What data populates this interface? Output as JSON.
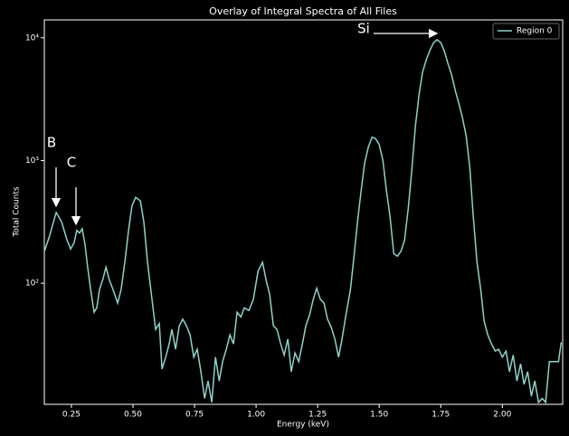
{
  "chart_data": {
    "type": "line",
    "title": "Overlay of Integral Spectra of All Files",
    "xlabel": "Energy (keV)",
    "ylabel": "Total Counts",
    "x": [
      0.14,
      0.162,
      0.188,
      0.21,
      0.232,
      0.247,
      0.261,
      0.272,
      0.283,
      0.294,
      0.305,
      0.316,
      0.328,
      0.342,
      0.353,
      0.364,
      0.379,
      0.39,
      0.405,
      0.419,
      0.438,
      0.452,
      0.467,
      0.482,
      0.496,
      0.511,
      0.53,
      0.544,
      0.559,
      0.577,
      0.592,
      0.607,
      0.618,
      0.633,
      0.647,
      0.658,
      0.673,
      0.688,
      0.702,
      0.717,
      0.732,
      0.747,
      0.761,
      0.776,
      0.791,
      0.805,
      0.82,
      0.835,
      0.85,
      0.864,
      0.879,
      0.894,
      0.908,
      0.923,
      0.938,
      0.952,
      0.971,
      0.989,
      1.008,
      1.026,
      1.041,
      1.055,
      1.07,
      1.085,
      1.1,
      1.114,
      1.129,
      1.143,
      1.158,
      1.173,
      1.188,
      1.202,
      1.217,
      1.232,
      1.246,
      1.261,
      1.276,
      1.29,
      1.305,
      1.32,
      1.335,
      1.349,
      1.364,
      1.383,
      1.397,
      1.412,
      1.427,
      1.441,
      1.456,
      1.471,
      1.485,
      1.5,
      1.515,
      1.529,
      1.544,
      1.559,
      1.574,
      1.588,
      1.603,
      1.618,
      1.632,
      1.647,
      1.662,
      1.676,
      1.691,
      1.706,
      1.721,
      1.735,
      1.75,
      1.765,
      1.779,
      1.794,
      1.809,
      1.824,
      1.838,
      1.853,
      1.868,
      1.882,
      1.897,
      1.912,
      1.926,
      1.941,
      1.956,
      1.971,
      1.985,
      2.0,
      2.015,
      2.029,
      2.044,
      2.059,
      2.074,
      2.088,
      2.103,
      2.118,
      2.132,
      2.147,
      2.162,
      2.176,
      2.191,
      2.21,
      2.228,
      2.239
    ],
    "series": [
      {
        "name": "Region 0",
        "color": "#8dd3c7",
        "values": [
          181,
          246,
          377,
          316,
          226,
          190,
          214,
          270,
          256,
          278,
          209,
          135,
          89,
          58,
          63,
          89,
          110,
          135,
          105,
          89,
          69,
          89,
          148,
          270,
          427,
          501,
          468,
          316,
          148,
          74,
          42,
          47,
          20,
          25,
          32,
          42,
          29,
          45,
          51,
          45,
          38,
          25,
          29,
          19,
          11.5,
          16,
          10.7,
          25,
          16,
          23,
          29,
          38,
          32,
          58,
          53,
          63,
          60,
          74,
          126,
          148,
          105,
          81,
          45,
          42,
          32,
          26,
          35,
          19,
          27,
          23,
          32,
          45,
          55,
          74,
          91,
          74,
          69,
          51,
          44,
          35,
          25,
          35,
          54,
          89,
          162,
          316,
          575,
          955,
          1290,
          1550,
          1510,
          1350,
          1000,
          575,
          347,
          174,
          166,
          182,
          224,
          407,
          813,
          1905,
          3470,
          5250,
          6610,
          7940,
          9120,
          9660,
          9120,
          7760,
          6170,
          5010,
          3720,
          2880,
          2240,
          1590,
          871,
          347,
          148,
          89,
          49,
          38,
          32,
          28,
          29,
          25,
          28,
          19,
          26,
          16,
          22,
          15,
          19,
          12,
          16,
          10.7,
          11.5,
          10.7,
          23,
          23,
          23,
          33
        ]
      }
    ],
    "xlim": [
      0.14,
      2.245
    ],
    "xticks": [
      0.25,
      {
        "value": 0.5,
        "label": "0.50"
      },
      0.75,
      {
        "value": 1,
        "label": "1.00"
      },
      1.25,
      {
        "value": 1.5,
        "label": "1.50"
      },
      1.75,
      {
        "value": 2,
        "label": "2.00"
      }
    ],
    "ylim": [
      10.3,
      14000
    ],
    "ylog": true,
    "yticks": [
      {
        "value": 100,
        "label": "10²"
      },
      {
        "value": 1000,
        "label": "10³"
      },
      {
        "value": 10000,
        "label": "10⁴"
      }
    ],
    "legend": "upper right",
    "annotations": [
      {
        "text": "Si"
      },
      {
        "text": "B"
      },
      {
        "text": "C"
      }
    ]
  }
}
